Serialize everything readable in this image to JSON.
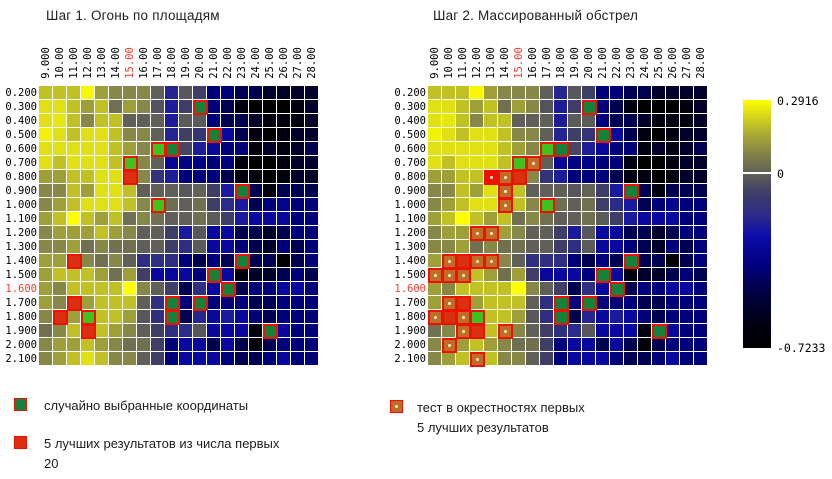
{
  "titles": {
    "step1": "Шаг 1. Огонь по площадям",
    "step2": "Шаг 2. Массированный обстрел"
  },
  "axes": {
    "x_ticks": [
      "9.000",
      "10.00",
      "11.00",
      "12.00",
      "13.00",
      "14.00",
      "15.00",
      "16.00",
      "17.00",
      "18.00",
      "19.00",
      "20.00",
      "21.00",
      "22.00",
      "23.00",
      "24.00",
      "25.00",
      "26.00",
      "27.00",
      "28.00"
    ],
    "y_ticks": [
      "0.200",
      "0.300",
      "0.400",
      "0.500",
      "0.600",
      "0.700",
      "0.800",
      "0.900",
      "1.000",
      "1.100",
      "1.200",
      "1.300",
      "1.400",
      "1.500",
      "1.600",
      "1.700",
      "1.800",
      "1.900",
      "2.000",
      "2.100"
    ],
    "highlight_x_tick": "15.00",
    "highlight_y_tick": "1.600",
    "highlight_color": "#f53d2e"
  },
  "colorbar": {
    "max_label": "0.2916",
    "zero_label": "0",
    "min_label": "-0.7233"
  },
  "legend": {
    "random": {
      "label": "случайно выбранные координаты"
    },
    "best5": {
      "label_line1": "5 лучших результатов из числа первых",
      "label_line2": "20"
    },
    "tests": {
      "label_line1": "тест в окрестностях первых",
      "label_line2": "5 лучших результатов"
    }
  },
  "marker_colors": {
    "green_bright": "#3fc21e",
    "green_dark": "#16813a",
    "red": "#da2f10",
    "red_bright": "#ee1204",
    "orange": "#bf6c26",
    "dot": "#ffedc8",
    "border": "#ee1100"
  },
  "chart_data": {
    "type": "heatmap",
    "title_left": "Шаг 1. Огонь по площадям",
    "title_right": "Шаг 2. Массированный обстрел",
    "x": [
      9.0,
      10.0,
      11.0,
      12.0,
      13.0,
      14.0,
      15.0,
      16.0,
      17.0,
      18.0,
      19.0,
      20.0,
      21.0,
      22.0,
      23.0,
      24.0,
      25.0,
      26.0,
      27.0,
      28.0
    ],
    "y": [
      0.2,
      0.3,
      0.4,
      0.5,
      0.6,
      0.7,
      0.8,
      0.9,
      1.0,
      1.1,
      1.2,
      1.3,
      1.4,
      1.5,
      1.6,
      1.7,
      1.8,
      1.9,
      2.0,
      2.1
    ],
    "vmin": -0.7233,
    "vmax": 0.2916,
    "optimum": {
      "x": 15.0,
      "y": 1.6,
      "value": 0.2916
    },
    "values": [
      [
        0.19,
        0.19,
        0.19,
        0.28,
        0.13,
        0.08,
        0.08,
        0.08,
        -0.01,
        -0.2,
        -0.03,
        -0.09,
        -0.39,
        -0.39,
        -0.47,
        -0.47,
        -0.56,
        -0.56,
        -0.56,
        -0.56
      ],
      [
        0.24,
        0.24,
        0.19,
        0.13,
        0.19,
        0.03,
        0.13,
        0.08,
        -0.04,
        -0.22,
        -0.09,
        -0.39,
        -0.39,
        -0.47,
        -0.64,
        -0.72,
        -0.72,
        -0.72,
        -0.64,
        -0.56
      ],
      [
        0.24,
        0.25,
        0.19,
        0.08,
        0.19,
        0.19,
        -0.01,
        -0.01,
        -0.01,
        -0.22,
        -0.02,
        -0.02,
        -0.39,
        -0.47,
        -0.47,
        -0.56,
        -0.64,
        -0.64,
        -0.64,
        -0.56
      ],
      [
        0.27,
        0.24,
        0.19,
        0.24,
        0.24,
        0.19,
        0.08,
        0.08,
        -0.01,
        -0.2,
        -0.09,
        -0.13,
        -0.3,
        -0.3,
        -0.47,
        -0.64,
        -0.72,
        -0.64,
        -0.56,
        -0.56
      ],
      [
        0.24,
        0.24,
        0.24,
        0.24,
        0.24,
        0.19,
        0.13,
        0.08,
        0.03,
        -0.23,
        -0.07,
        -0.22,
        -0.3,
        -0.39,
        -0.39,
        -0.64,
        -0.56,
        -0.64,
        -0.56,
        -0.47
      ],
      [
        0.24,
        0.19,
        0.24,
        0.24,
        0.24,
        0.19,
        0.19,
        0.08,
        -0.01,
        -0.32,
        -0.36,
        -0.36,
        -0.39,
        -0.39,
        -0.64,
        -0.72,
        -0.72,
        -0.64,
        -0.56,
        -0.56
      ],
      [
        0.13,
        0.13,
        0.19,
        0.19,
        0.24,
        0.24,
        0.19,
        0.08,
        -0.14,
        -0.22,
        -0.39,
        -0.39,
        -0.39,
        -0.47,
        -0.64,
        -0.64,
        -0.72,
        -0.64,
        -0.56,
        -0.56
      ],
      [
        0.08,
        0.08,
        0.19,
        0.13,
        0.24,
        0.24,
        0.19,
        -0.01,
        -0.01,
        -0.01,
        -0.03,
        0.0,
        -0.09,
        -0.23,
        -0.3,
        -0.47,
        -0.64,
        -0.47,
        -0.47,
        -0.47
      ],
      [
        0.08,
        0.13,
        0.19,
        0.24,
        0.24,
        0.24,
        0.19,
        0.08,
        0.13,
        0.02,
        -0.01,
        0.03,
        -0.09,
        -0.18,
        -0.23,
        -0.47,
        -0.39,
        -0.34,
        -0.39,
        -0.39
      ],
      [
        0.13,
        0.19,
        0.29,
        0.19,
        0.13,
        0.19,
        0.03,
        0.08,
        0.03,
        -0.01,
        -0.01,
        0.03,
        -0.02,
        -0.09,
        -0.23,
        -0.3,
        -0.3,
        -0.3,
        -0.39,
        -0.39
      ],
      [
        0.08,
        0.13,
        0.13,
        0.13,
        0.19,
        0.13,
        0.08,
        -0.01,
        -0.01,
        -0.09,
        -0.23,
        -0.03,
        -0.3,
        -0.3,
        -0.47,
        -0.47,
        -0.56,
        -0.47,
        -0.39,
        -0.39
      ],
      [
        0.08,
        0.08,
        0.13,
        0.03,
        0.08,
        0.03,
        0.03,
        -0.01,
        -0.01,
        -0.09,
        -0.16,
        -0.02,
        -0.3,
        -0.3,
        -0.39,
        -0.47,
        -0.56,
        -0.39,
        -0.47,
        -0.39
      ],
      [
        0.13,
        0.13,
        0.13,
        0.08,
        0.03,
        0.08,
        -0.01,
        -0.16,
        -0.16,
        -0.16,
        -0.39,
        -0.47,
        -0.39,
        -0.47,
        -0.39,
        -0.47,
        -0.47,
        -0.72,
        -0.47,
        -0.39
      ],
      [
        0.13,
        0.19,
        0.19,
        0.19,
        0.13,
        0.03,
        0.13,
        -0.09,
        -0.3,
        -0.3,
        -0.3,
        -0.39,
        -0.3,
        -0.3,
        -0.64,
        -0.56,
        -0.56,
        -0.47,
        -0.39,
        -0.47
      ],
      [
        0.13,
        0.08,
        0.19,
        0.19,
        0.19,
        0.19,
        0.2916,
        0.08,
        -0.01,
        -0.09,
        -0.47,
        -0.16,
        -0.3,
        -0.3,
        -0.47,
        -0.39,
        -0.39,
        -0.3,
        -0.3,
        -0.39
      ],
      [
        0.13,
        0.08,
        0.13,
        0.13,
        0.19,
        0.19,
        0.19,
        -0.01,
        -0.16,
        -0.23,
        -0.39,
        -0.3,
        -0.39,
        -0.39,
        -0.39,
        -0.47,
        -0.47,
        -0.39,
        -0.39,
        -0.39
      ],
      [
        0.08,
        0.13,
        0.13,
        0.19,
        0.19,
        0.19,
        0.13,
        -0.03,
        -0.16,
        -0.23,
        -0.47,
        -0.2,
        -0.3,
        -0.23,
        -0.3,
        -0.39,
        -0.47,
        -0.39,
        -0.39,
        -0.39
      ],
      [
        0.03,
        0.08,
        0.19,
        0.19,
        0.19,
        0.13,
        0.08,
        -0.01,
        -0.09,
        -0.16,
        -0.18,
        -0.03,
        -0.3,
        -0.3,
        -0.3,
        -0.64,
        -0.3,
        -0.3,
        -0.39,
        -0.39
      ],
      [
        0.08,
        0.13,
        0.13,
        0.19,
        0.13,
        0.08,
        0.03,
        0.03,
        -0.09,
        -0.39,
        -0.3,
        -0.3,
        -0.47,
        -0.3,
        -0.47,
        -0.66,
        -0.47,
        -0.39,
        -0.39,
        -0.39
      ],
      [
        0.08,
        0.13,
        0.19,
        0.24,
        0.19,
        0.08,
        0.08,
        -0.01,
        -0.09,
        -0.39,
        -0.3,
        -0.3,
        -0.3,
        -0.39,
        -0.47,
        -0.47,
        -0.39,
        -0.3,
        -0.39,
        -0.39
      ]
    ],
    "colormap_stops": [
      [
        0.0,
        0,
        0,
        0
      ],
      [
        0.1,
        0,
        0,
        18
      ],
      [
        0.22,
        0,
        0,
        66
      ],
      [
        0.34,
        0,
        0,
        128
      ],
      [
        0.45,
        12,
        12,
        172
      ],
      [
        0.53,
        42,
        42,
        140
      ],
      [
        0.62,
        60,
        60,
        104
      ],
      [
        0.7127,
        100,
        100,
        86
      ],
      [
        0.79,
        134,
        134,
        72
      ],
      [
        0.87,
        174,
        174,
        48
      ],
      [
        0.94,
        218,
        218,
        24
      ],
      [
        1.0,
        255,
        255,
        0
      ]
    ],
    "markers": {
      "step1_random_green": [
        [
          11,
          1
        ],
        [
          12,
          3
        ],
        [
          8,
          4
        ],
        [
          9,
          4
        ],
        [
          6,
          5
        ],
        [
          14,
          7
        ],
        [
          8,
          8
        ],
        [
          14,
          12
        ],
        [
          12,
          13
        ],
        [
          13,
          14
        ],
        [
          9,
          15
        ],
        [
          11,
          15
        ],
        [
          3,
          16
        ],
        [
          9,
          16
        ],
        [
          16,
          17
        ]
      ],
      "step1_best5_red": [
        [
          6,
          6
        ],
        [
          2,
          12
        ],
        [
          2,
          15
        ],
        [
          1,
          16
        ],
        [
          3,
          17
        ]
      ],
      "step2_tests_orange_dot": [
        [
          7,
          5
        ],
        [
          5,
          6
        ],
        [
          5,
          7
        ],
        [
          5,
          8
        ],
        [
          3,
          10
        ],
        [
          4,
          10
        ],
        [
          1,
          12
        ],
        [
          3,
          12
        ],
        [
          4,
          12
        ],
        [
          0,
          13
        ],
        [
          1,
          13
        ],
        [
          2,
          13
        ],
        [
          1,
          15
        ],
        [
          0,
          16
        ],
        [
          2,
          16
        ],
        [
          2,
          17
        ],
        [
          5,
          17
        ],
        [
          1,
          18
        ],
        [
          3,
          19
        ]
      ],
      "step2_best_red_dot": [
        [
          4,
          6
        ]
      ]
    }
  }
}
